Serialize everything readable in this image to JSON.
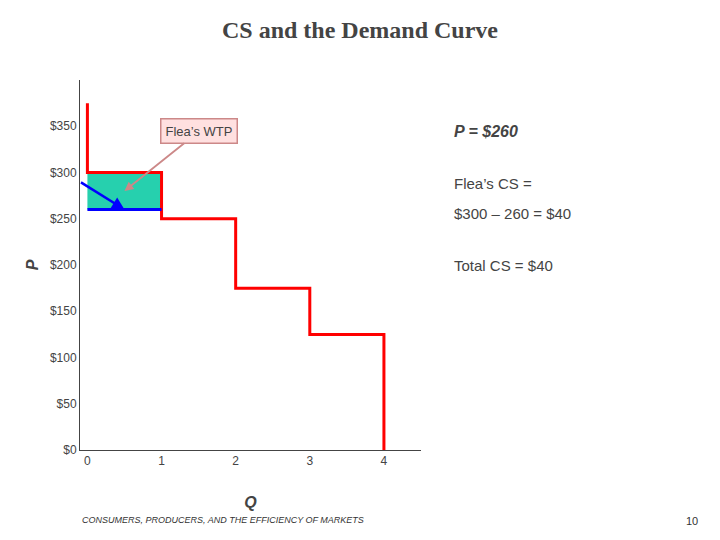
{
  "chart_data": {
    "type": "line",
    "title": "CS and the Demand Curve",
    "x_label": "Q",
    "y_label": "P",
    "series": [
      {
        "type": "area",
        "x": [
          0,
          1
        ],
        "values": [
          300,
          300
        ],
        "base": [
          260,
          260
        ],
        "color": "#00c8a0"
      },
      {
        "type": "line",
        "x": [
          0,
          0,
          1,
          1,
          2,
          2,
          3,
          3,
          4,
          4
        ],
        "values": [
          375,
          300,
          300,
          250,
          250,
          175,
          175,
          125,
          125,
          0
        ],
        "color": "red"
      },
      {
        "type": "line",
        "x": [
          0,
          1
        ],
        "values": [
          260,
          260
        ],
        "color": "blue"
      }
    ],
    "xlim": [
      -0.1,
      4.5
    ],
    "ylim": [
      0,
      400
    ],
    "xticks": [
      0,
      1,
      2,
      3,
      4
    ],
    "yticks": [
      {
        "value": 0,
        "label": "$0"
      },
      {
        "value": 50,
        "label": "$50"
      },
      {
        "value": 100,
        "label": "$100"
      },
      {
        "value": 150,
        "label": "$150"
      },
      {
        "value": 200,
        "label": "$200"
      },
      {
        "value": 250,
        "label": "$250"
      },
      {
        "value": 300,
        "label": "$300"
      },
      {
        "value": 350,
        "label": "$350"
      }
    ],
    "grid": false,
    "annotations": [
      "Flea’s WTP",
      "P = $260",
      "Flea’s CS =",
      "$300 – 260 = $40",
      "Total CS = $40"
    ],
    "footer": "CONSUMERS, PRODUCERS, AND THE EFFICIENCY OF MARKETS",
    "page_number": "10"
  }
}
